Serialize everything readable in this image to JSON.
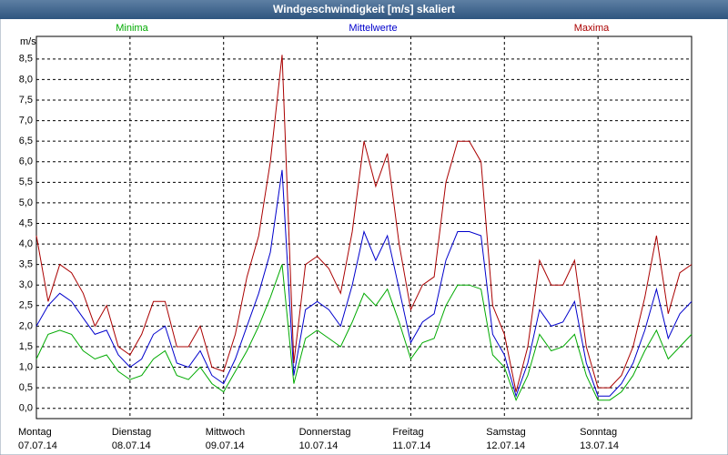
{
  "chart_data": {
    "type": "line",
    "title": "Windgeschwindigkeit [m/s] skaliert",
    "y_unit": "m/s",
    "x": [
      0,
      3,
      6,
      9,
      12,
      15,
      18,
      21,
      24,
      27,
      30,
      33,
      36,
      39,
      42,
      45,
      48,
      51,
      54,
      57,
      60,
      63,
      66,
      69,
      72,
      75,
      78,
      81,
      84,
      87,
      90,
      93,
      96,
      99,
      102,
      105,
      108,
      111,
      114,
      117,
      120,
      123,
      126,
      129,
      132,
      135,
      138,
      141,
      144,
      147,
      150,
      153,
      156,
      159,
      162,
      165,
      168
    ],
    "xlim": [
      0,
      168
    ],
    "xticks": [
      {
        "value": 0,
        "label": "Montag"
      },
      {
        "value": 24,
        "label": "Dienstag"
      },
      {
        "value": 48,
        "label": "Mittwoch"
      },
      {
        "value": 72,
        "label": "Donnerstag"
      },
      {
        "value": 96,
        "label": "Freitag"
      },
      {
        "value": 120,
        "label": "Samstag"
      },
      {
        "value": 144,
        "label": "Sonntag"
      }
    ],
    "xtick_dates": [
      "07.07.14",
      "08.07.14",
      "09.07.14",
      "10.07.14",
      "11.07.14",
      "12.07.14",
      "13.07.14"
    ],
    "ylim": [
      -0.25,
      9.05
    ],
    "yticks": [
      {
        "value": 0,
        "label": "0,0"
      },
      {
        "value": 0.5,
        "label": "0,5"
      },
      {
        "value": 1,
        "label": "1,0"
      },
      {
        "value": 1.5,
        "label": "1,5"
      },
      {
        "value": 2,
        "label": "2,0"
      },
      {
        "value": 2.5,
        "label": "2,5"
      },
      {
        "value": 3,
        "label": "3,0"
      },
      {
        "value": 3.5,
        "label": "3,5"
      },
      {
        "value": 4,
        "label": "4,0"
      },
      {
        "value": 4.5,
        "label": "4,5"
      },
      {
        "value": 5,
        "label": "5,0"
      },
      {
        "value": 5.5,
        "label": "5,5"
      },
      {
        "value": 6,
        "label": "6,0"
      },
      {
        "value": 6.5,
        "label": "6,5"
      },
      {
        "value": 7,
        "label": "7,0"
      },
      {
        "value": 7.5,
        "label": "7,5"
      },
      {
        "value": 8,
        "label": "8,0"
      },
      {
        "value": 8.5,
        "label": "8,5"
      }
    ],
    "grid": true,
    "series": [
      {
        "name": "Minima",
        "color": "#00aa00",
        "values": [
          1.2,
          1.8,
          1.9,
          1.8,
          1.4,
          1.2,
          1.3,
          0.9,
          0.7,
          0.8,
          1.2,
          1.4,
          0.8,
          0.7,
          1.0,
          0.6,
          0.4,
          0.9,
          1.4,
          2.0,
          2.7,
          3.5,
          0.6,
          1.7,
          1.9,
          1.7,
          1.5,
          2.1,
          2.8,
          2.5,
          2.9,
          2.1,
          1.2,
          1.6,
          1.7,
          2.5,
          3.0,
          3.0,
          2.9,
          1.3,
          1.0,
          0.2,
          0.8,
          1.8,
          1.4,
          1.5,
          1.8,
          0.8,
          0.2,
          0.2,
          0.4,
          0.8,
          1.4,
          1.9,
          1.2,
          1.5,
          1.8
        ]
      },
      {
        "name": "Mittelwerte",
        "color": "#0000cc",
        "values": [
          2.0,
          2.5,
          2.8,
          2.6,
          2.2,
          1.8,
          1.9,
          1.3,
          1.0,
          1.2,
          1.8,
          2.0,
          1.1,
          1.0,
          1.4,
          0.8,
          0.6,
          1.2,
          2.0,
          2.8,
          3.8,
          5.8,
          0.8,
          2.4,
          2.6,
          2.4,
          2.0,
          3.0,
          4.3,
          3.6,
          4.2,
          2.9,
          1.6,
          2.1,
          2.3,
          3.6,
          4.3,
          4.3,
          4.2,
          1.8,
          1.3,
          0.3,
          1.1,
          2.4,
          2.0,
          2.1,
          2.6,
          1.1,
          0.3,
          0.3,
          0.6,
          1.1,
          1.9,
          2.9,
          1.7,
          2.3,
          2.6
        ]
      },
      {
        "name": "Maxima",
        "color": "#aa0000",
        "values": [
          4.2,
          2.6,
          3.5,
          3.3,
          2.8,
          2.0,
          2.5,
          1.5,
          1.3,
          1.8,
          2.6,
          2.6,
          1.5,
          1.5,
          2.0,
          1.0,
          0.9,
          1.8,
          3.2,
          4.2,
          6.0,
          8.6,
          1.1,
          3.5,
          3.7,
          3.4,
          2.8,
          4.3,
          6.5,
          5.4,
          6.2,
          4.0,
          2.4,
          3.0,
          3.2,
          5.5,
          6.5,
          6.5,
          6.0,
          2.5,
          1.8,
          0.4,
          1.5,
          3.6,
          3.0,
          3.0,
          3.6,
          1.5,
          0.5,
          0.5,
          0.8,
          1.5,
          2.7,
          4.2,
          2.3,
          3.3,
          3.5
        ]
      }
    ]
  }
}
